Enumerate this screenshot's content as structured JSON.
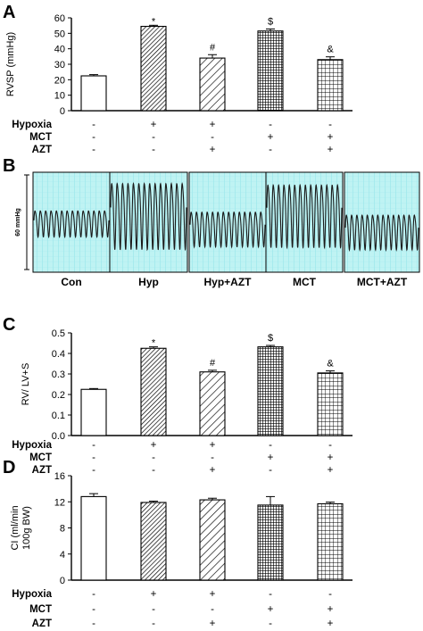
{
  "colors": {
    "ink": "#000000",
    "trace_bg": "#bff3f3",
    "trace_grid": "#6fd8e0",
    "trace_line": "#1a1a1a"
  },
  "panels": {
    "A": {
      "letter": "A"
    },
    "B": {
      "letter": "B",
      "scale_label": "60 mmHg",
      "traces": [
        {
          "label": "Con",
          "mean": 0.5,
          "amp": 0.15,
          "cycles": 14
        },
        {
          "label": "Hyp",
          "mean": 0.6,
          "amp": 0.38,
          "cycles": 14
        },
        {
          "label": "Hyp+AZT",
          "mean": 0.45,
          "amp": 0.2,
          "cycles": 14
        },
        {
          "label": "MCT",
          "mean": 0.6,
          "amp": 0.36,
          "cycles": 14
        },
        {
          "label": "MCT+AZT",
          "mean": 0.42,
          "amp": 0.2,
          "cycles": 14
        }
      ]
    },
    "C": {
      "letter": "C"
    },
    "D": {
      "letter": "D"
    }
  },
  "conditions": {
    "labels": [
      "Hypoxia",
      "MCT",
      "AZT"
    ],
    "rows": [
      [
        "-",
        "+",
        "+",
        "-",
        "-"
      ],
      [
        "-",
        "-",
        "-",
        "+",
        "+"
      ],
      [
        "-",
        "-",
        "+",
        "-",
        "+"
      ]
    ]
  },
  "chart_data": [
    {
      "panel": "A",
      "type": "bar",
      "ylabel": "RVSP (mmHg)",
      "ylim": [
        0,
        60
      ],
      "yticks": [
        0,
        10,
        20,
        30,
        40,
        50,
        60
      ],
      "series": [
        {
          "values": [
            22.5,
            54.5,
            34,
            51.5,
            33
          ],
          "errors": [
            0.8,
            0.7,
            2.2,
            1.3,
            1.8
          ]
        }
      ],
      "patterns": [
        "white",
        "hatch-fine",
        "hatch-wide",
        "grid-dense",
        "grid-open"
      ],
      "annotations": [
        "",
        "*",
        "#",
        "$",
        "&"
      ]
    },
    {
      "panel": "C",
      "type": "bar",
      "ylabel": "RV/ LV+S",
      "ylim": [
        0.0,
        0.5
      ],
      "yticks": [
        0.0,
        0.1,
        0.2,
        0.3,
        0.4,
        0.5
      ],
      "yticklabels": [
        "0.0",
        "0.1",
        "0.2",
        "0.3",
        "0.4",
        "0.5"
      ],
      "series": [
        {
          "values": [
            0.225,
            0.425,
            0.31,
            0.432,
            0.305
          ],
          "errors": [
            0.004,
            0.007,
            0.008,
            0.007,
            0.01
          ]
        }
      ],
      "patterns": [
        "white",
        "hatch-fine",
        "hatch-wide",
        "grid-dense",
        "grid-open"
      ],
      "annotations": [
        "",
        "*",
        "#",
        "$",
        "&"
      ]
    },
    {
      "panel": "D",
      "type": "bar",
      "ylabel": "CI (ml/min\n100g BW)",
      "ylabel_lines": [
        "CI (ml/min",
        "100g BW)"
      ],
      "ylim": [
        0,
        16
      ],
      "yticks": [
        0,
        4,
        8,
        12,
        16
      ],
      "series": [
        {
          "values": [
            12.8,
            11.9,
            12.3,
            11.5,
            11.7
          ],
          "errors": [
            0.45,
            0.2,
            0.25,
            1.3,
            0.25
          ]
        }
      ],
      "patterns": [
        "white",
        "hatch-fine",
        "hatch-wide",
        "grid-dense",
        "grid-open"
      ],
      "annotations": [
        "",
        "",
        "",
        "",
        ""
      ]
    }
  ]
}
